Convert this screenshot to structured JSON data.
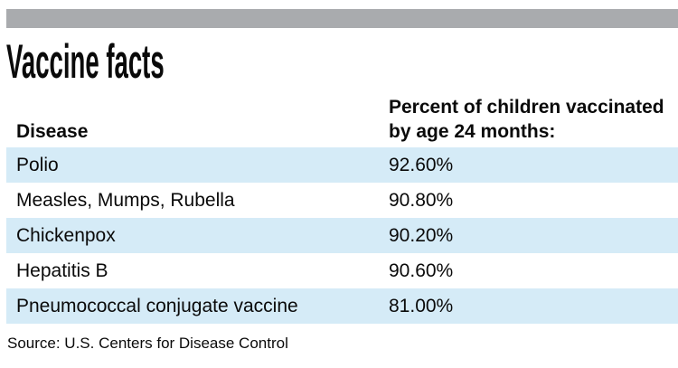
{
  "title": "Vaccine facts",
  "colors": {
    "top_bar": "#a9abae",
    "row_highlight": "#d5ebf7"
  },
  "table": {
    "columns": [
      {
        "label": "Disease"
      },
      {
        "label": "Percent of children vaccinated by age 24 months:"
      }
    ],
    "rows": [
      {
        "disease": "Polio",
        "percent": "92.60%"
      },
      {
        "disease": "Measles, Mumps, Rubella",
        "percent": "90.80%"
      },
      {
        "disease": "Chickenpox",
        "percent": "90.20%"
      },
      {
        "disease": "Hepatitis B",
        "percent": "90.60%"
      },
      {
        "disease": "Pneumococcal conjugate vaccine",
        "percent": "81.00%"
      }
    ]
  },
  "source": "Source: U.S. Centers for Disease Control",
  "chart_data": {
    "type": "table",
    "title": "Vaccine facts",
    "columns": [
      "Disease",
      "Percent of children vaccinated by age 24 months:"
    ],
    "categories": [
      "Polio",
      "Measles, Mumps, Rubella",
      "Chickenpox",
      "Hepatitis B",
      "Pneumococcal conjugate vaccine"
    ],
    "values": [
      92.6,
      90.8,
      90.2,
      90.6,
      81.0
    ],
    "value_labels": [
      "92.60%",
      "90.80%",
      "90.20%",
      "90.60%",
      "81.00%"
    ],
    "ylabel": "Percent of children vaccinated by age 24 months",
    "source": "Source: U.S. Centers for Disease Control",
    "row_striping": "alternate light blue starting with first data row"
  }
}
